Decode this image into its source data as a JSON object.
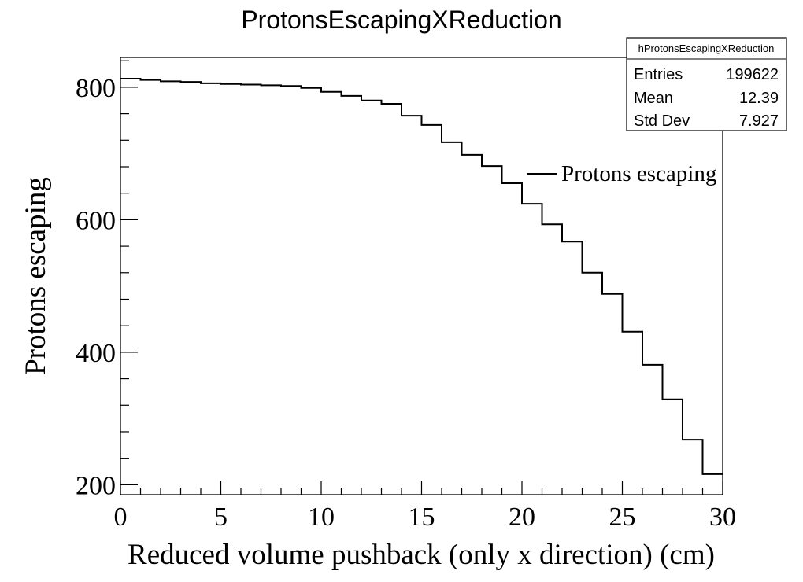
{
  "chart_data": {
    "type": "step",
    "title": "ProtonsEscapingXReduction",
    "xlabel": "Reduced volume pushback (only x direction) (cm)",
    "ylabel": "Protons escaping",
    "xlim": [
      0,
      30
    ],
    "ylim": [
      185,
      845
    ],
    "x_ticks": [
      0,
      5,
      10,
      15,
      20,
      25,
      30
    ],
    "y_ticks": [
      200,
      400,
      600,
      800
    ],
    "bin_edges": [
      0,
      1,
      2,
      3,
      4,
      5,
      6,
      7,
      8,
      9,
      10,
      11,
      12,
      13,
      14,
      15,
      16,
      17,
      18,
      19,
      20,
      21,
      22,
      23,
      24,
      25,
      26,
      27,
      28,
      29,
      30
    ],
    "series": [
      {
        "name": "Protons escaping",
        "values": [
          813,
          811,
          809,
          808,
          806,
          805,
          804,
          803,
          802,
          799,
          793,
          787,
          780,
          775,
          757,
          743,
          717,
          698,
          681,
          655,
          624,
          593,
          567,
          520,
          488,
          431,
          381,
          329,
          268,
          216
        ]
      }
    ],
    "legend": {
      "position": "upper-right",
      "label": "Protons escaping"
    },
    "stats_box": {
      "name": "hProtonsEscapingXReduction",
      "rows": [
        {
          "label": "Entries",
          "value": "199622"
        },
        {
          "label": "Mean",
          "value": "12.39"
        },
        {
          "label": "Std Dev",
          "value": "7.927"
        }
      ]
    },
    "grid": false,
    "colors": {
      "line": "#000000",
      "background": "#ffffff"
    }
  }
}
